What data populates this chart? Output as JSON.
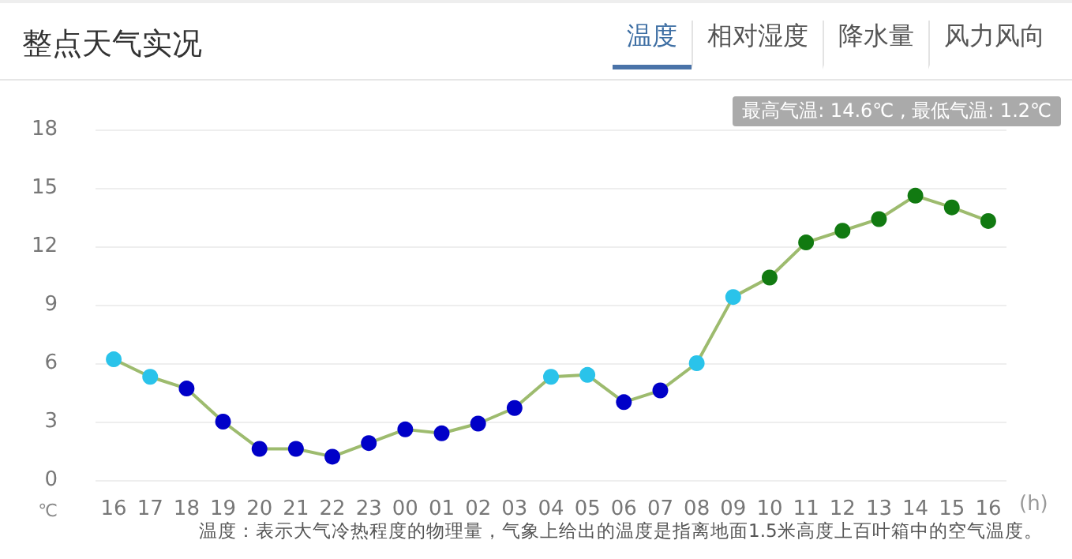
{
  "chart_data": {
    "type": "line",
    "title": "整点天气实况",
    "annotations": [
      "温度",
      "相对湿度",
      "降水量",
      "风力风向",
      "最高气温: 14.6℃ , 最低气温: 1.2℃",
      "温度：表示大气冷热程度的物理量，气象上给出的温度是指离地面1.5米高度上百叶箱中的空气温度。"
    ],
    "xlabel": "(h)",
    "ylabel": "℃",
    "categories": [
      "16",
      "17",
      "18",
      "19",
      "20",
      "21",
      "22",
      "23",
      "00",
      "01",
      "02",
      "03",
      "04",
      "05",
      "06",
      "07",
      "08",
      "09",
      "10",
      "11",
      "12",
      "13",
      "14",
      "15",
      "16"
    ],
    "series": [
      {
        "color": "#9dbb6e",
        "values": [
          6.2,
          5.3,
          4.7,
          3.0,
          1.6,
          1.6,
          1.2,
          1.9,
          2.6,
          2.4,
          2.9,
          3.7,
          5.3,
          5.4,
          4.0,
          4.6,
          6.0,
          9.4,
          10.4,
          12.2,
          12.8,
          13.4,
          14.6,
          14.0,
          13.3
        ],
        "colors": [
          "#2ac3ea",
          "#2ac3ea",
          "#0000c8",
          "#0000c8",
          "#0000c8",
          "#0000c8",
          "#0000c8",
          "#0000c8",
          "#0000c8",
          "#0000c8",
          "#0000c8",
          "#0000c8",
          "#2ac3ea",
          "#2ac3ea",
          "#0000c8",
          "#0000c8",
          "#2ac3ea",
          "#2ac3ea",
          "#117a11",
          "#117a11",
          "#117a11",
          "#117a11",
          "#117a11",
          "#117a11",
          "#117a11"
        ]
      }
    ],
    "ylim": [
      0,
      18
    ],
    "yticks": [
      0,
      3,
      6,
      9,
      12,
      15,
      18
    ],
    "grid": "y",
    "marker": "circle",
    "line_style": "solid"
  }
}
